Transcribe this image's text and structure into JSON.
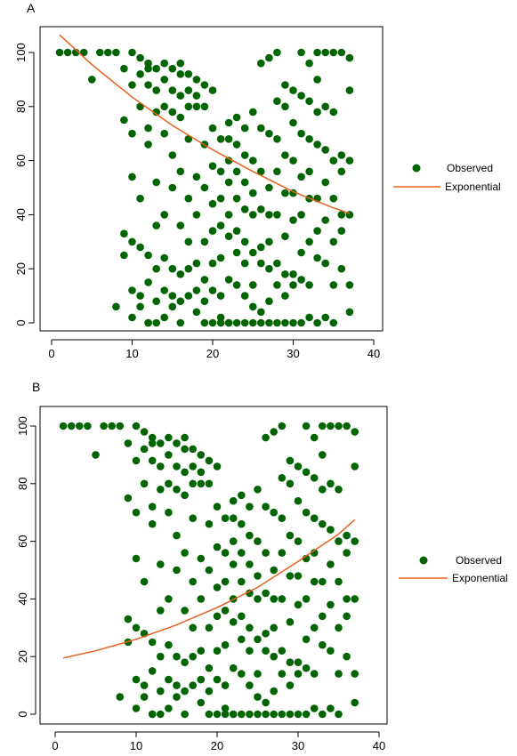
{
  "chart_data": [
    {
      "panel_label": "A",
      "type": "scatter",
      "title": "",
      "xlabel": "",
      "ylabel": "",
      "xlim": [
        0,
        40
      ],
      "ylim": [
        0,
        100
      ],
      "xticks": [
        0,
        10,
        20,
        30,
        40
      ],
      "yticks": [
        0,
        20,
        40,
        60,
        80,
        100
      ],
      "grid": false,
      "legend": {
        "placement": "right",
        "entries": [
          {
            "label": "Observed",
            "kind": "point",
            "color": "#006400"
          },
          {
            "label": "Exponential",
            "kind": "line",
            "color": "#E8601C"
          }
        ]
      },
      "series": [
        {
          "name": "Observed",
          "kind": "points",
          "color": "#006400",
          "x": [
            1,
            2,
            3,
            4,
            5,
            6,
            7,
            8,
            8,
            9,
            9,
            9,
            9,
            10,
            10,
            10,
            10,
            10,
            10,
            10,
            11,
            11,
            11,
            11,
            11,
            11,
            11,
            12,
            12,
            12,
            12,
            12,
            12,
            12,
            12,
            12,
            13,
            13,
            13,
            13,
            13,
            13,
            13,
            13,
            14,
            14,
            14,
            14,
            14,
            14,
            14,
            14,
            15,
            15,
            15,
            15,
            15,
            15,
            15,
            15,
            16,
            16,
            16,
            16,
            16,
            16,
            16,
            16,
            16,
            17,
            17,
            17,
            17,
            17,
            17,
            17,
            17,
            18,
            18,
            18,
            18,
            18,
            18,
            18,
            18,
            19,
            19,
            19,
            19,
            19,
            19,
            19,
            19,
            20,
            20,
            20,
            20,
            20,
            20,
            20,
            20,
            21,
            21,
            21,
            21,
            21,
            21,
            21,
            21,
            22,
            22,
            22,
            22,
            22,
            22,
            22,
            22,
            22,
            23,
            23,
            23,
            23,
            23,
            23,
            23,
            23,
            24,
            24,
            24,
            24,
            24,
            24,
            24,
            24,
            25,
            25,
            25,
            25,
            25,
            25,
            25,
            25,
            26,
            26,
            26,
            26,
            26,
            26,
            26,
            26,
            27,
            27,
            27,
            27,
            27,
            27,
            27,
            27,
            28,
            28,
            28,
            28,
            28,
            28,
            28,
            28,
            29,
            29,
            29,
            29,
            29,
            29,
            29,
            29,
            30,
            30,
            30,
            30,
            30,
            30,
            30,
            30,
            31,
            31,
            31,
            31,
            31,
            31,
            31,
            31,
            32,
            32,
            32,
            32,
            32,
            32,
            32,
            32,
            33,
            33,
            33,
            33,
            33,
            33,
            33,
            33,
            34,
            34,
            34,
            34,
            34,
            34,
            34,
            35,
            35,
            35,
            35,
            35,
            35,
            35,
            36,
            36,
            36,
            36,
            36,
            36,
            37,
            37,
            37,
            37,
            37,
            37
          ],
          "y": [
            100,
            100,
            100,
            100,
            90,
            100,
            100,
            100,
            6,
            94,
            75,
            33,
            25,
            100,
            88,
            70,
            54,
            30,
            12,
            2,
            92,
            98,
            80,
            46,
            28,
            10,
            6,
            96,
            94,
            88,
            72,
            66,
            25,
            15,
            0,
            0,
            94,
            86,
            78,
            52,
            36,
            20,
            8,
            0,
            96,
            90,
            80,
            70,
            40,
            24,
            12,
            2,
            94,
            86,
            78,
            62,
            50,
            20,
            10,
            6,
            96,
            92,
            84,
            76,
            56,
            36,
            18,
            8,
            0,
            92,
            86,
            80,
            68,
            46,
            30,
            20,
            10,
            90,
            84,
            80,
            54,
            40,
            22,
            12,
            4,
            88,
            80,
            66,
            50,
            30,
            16,
            8,
            0,
            86,
            72,
            58,
            44,
            34,
            22,
            12,
            0,
            68,
            56,
            46,
            36,
            24,
            10,
            2,
            0,
            74,
            68,
            60,
            52,
            40,
            32,
            16,
            0,
            0,
            76,
            66,
            56,
            46,
            34,
            26,
            14,
            0,
            72,
            62,
            52,
            42,
            30,
            22,
            10,
            0,
            78,
            60,
            48,
            40,
            26,
            14,
            6,
            0,
            96,
            72,
            56,
            42,
            28,
            22,
            4,
            0,
            98,
            70,
            50,
            40,
            30,
            20,
            8,
            0,
            100,
            82,
            68,
            56,
            40,
            22,
            14,
            0,
            88,
            80,
            62,
            48,
            32,
            18,
            10,
            0,
            86,
            74,
            60,
            48,
            38,
            18,
            14,
            0,
            100,
            84,
            70,
            54,
            40,
            26,
            16,
            0,
            96,
            82,
            68,
            56,
            46,
            30,
            14,
            2,
            100,
            90,
            78,
            66,
            46,
            34,
            24,
            0,
            100,
            80,
            64,
            52,
            38,
            22,
            2,
            100,
            78,
            60,
            46,
            30,
            14,
            0,
            100,
            62,
            56,
            40,
            34,
            20,
            98,
            86,
            60,
            40,
            14,
            4
          ]
        },
        {
          "name": "Exponential",
          "kind": "line",
          "color": "#E8601C",
          "x": [
            1,
            5,
            10,
            15,
            20,
            25,
            30,
            35,
            37
          ],
          "y": [
            106.5,
            95.5,
            83.5,
            73,
            64,
            56,
            48.5,
            42.5,
            40.5
          ]
        }
      ]
    },
    {
      "panel_label": "B",
      "type": "scatter",
      "title": "",
      "xlabel": "",
      "ylabel": "",
      "xlim": [
        0,
        40
      ],
      "ylim": [
        0,
        100
      ],
      "xticks": [
        0,
        10,
        20,
        30,
        40
      ],
      "yticks": [
        0,
        20,
        40,
        60,
        80,
        100
      ],
      "grid": false,
      "legend": {
        "placement": "right",
        "entries": [
          {
            "label": "Observed",
            "kind": "point",
            "color": "#006400"
          },
          {
            "label": "Exponential",
            "kind": "line",
            "color": "#E8601C"
          }
        ]
      },
      "series": [
        {
          "name": "Observed",
          "kind": "points",
          "color": "#006400",
          "x": [
            1,
            2,
            3,
            4,
            5,
            6,
            7,
            8,
            8,
            9,
            9,
            9,
            9,
            10,
            10,
            10,
            10,
            10,
            10,
            10,
            11,
            11,
            11,
            11,
            11,
            11,
            11,
            12,
            12,
            12,
            12,
            12,
            12,
            12,
            12,
            12,
            13,
            13,
            13,
            13,
            13,
            13,
            13,
            13,
            14,
            14,
            14,
            14,
            14,
            14,
            14,
            14,
            15,
            15,
            15,
            15,
            15,
            15,
            15,
            15,
            16,
            16,
            16,
            16,
            16,
            16,
            16,
            16,
            16,
            17,
            17,
            17,
            17,
            17,
            17,
            17,
            17,
            18,
            18,
            18,
            18,
            18,
            18,
            18,
            18,
            19,
            19,
            19,
            19,
            19,
            19,
            19,
            19,
            20,
            20,
            20,
            20,
            20,
            20,
            20,
            20,
            21,
            21,
            21,
            21,
            21,
            21,
            21,
            21,
            22,
            22,
            22,
            22,
            22,
            22,
            22,
            22,
            22,
            23,
            23,
            23,
            23,
            23,
            23,
            23,
            23,
            24,
            24,
            24,
            24,
            24,
            24,
            24,
            24,
            25,
            25,
            25,
            25,
            25,
            25,
            25,
            25,
            26,
            26,
            26,
            26,
            26,
            26,
            26,
            26,
            27,
            27,
            27,
            27,
            27,
            27,
            27,
            27,
            28,
            28,
            28,
            28,
            28,
            28,
            28,
            28,
            29,
            29,
            29,
            29,
            29,
            29,
            29,
            29,
            30,
            30,
            30,
            30,
            30,
            30,
            30,
            30,
            31,
            31,
            31,
            31,
            31,
            31,
            31,
            31,
            32,
            32,
            32,
            32,
            32,
            32,
            32,
            32,
            33,
            33,
            33,
            33,
            33,
            33,
            33,
            33,
            34,
            34,
            34,
            34,
            34,
            34,
            34,
            35,
            35,
            35,
            35,
            35,
            35,
            35,
            36,
            36,
            36,
            36,
            36,
            36,
            37,
            37,
            37,
            37,
            37,
            37
          ],
          "y": [
            100,
            100,
            100,
            100,
            90,
            100,
            100,
            100,
            6,
            94,
            75,
            33,
            25,
            100,
            88,
            70,
            54,
            30,
            12,
            2,
            92,
            98,
            80,
            46,
            28,
            10,
            6,
            96,
            94,
            88,
            72,
            66,
            25,
            15,
            0,
            0,
            94,
            86,
            78,
            52,
            36,
            20,
            8,
            0,
            96,
            90,
            80,
            70,
            40,
            24,
            12,
            2,
            94,
            86,
            78,
            62,
            50,
            20,
            10,
            6,
            96,
            92,
            84,
            76,
            56,
            36,
            18,
            8,
            0,
            92,
            86,
            80,
            68,
            46,
            30,
            20,
            10,
            90,
            84,
            80,
            54,
            40,
            22,
            12,
            4,
            88,
            80,
            66,
            50,
            30,
            16,
            8,
            0,
            86,
            72,
            58,
            44,
            34,
            22,
            12,
            0,
            68,
            56,
            46,
            36,
            24,
            10,
            2,
            0,
            74,
            68,
            60,
            52,
            40,
            32,
            16,
            0,
            0,
            76,
            66,
            56,
            46,
            34,
            26,
            14,
            0,
            72,
            62,
            52,
            42,
            30,
            22,
            10,
            0,
            78,
            60,
            48,
            40,
            26,
            14,
            6,
            0,
            96,
            72,
            56,
            42,
            28,
            22,
            4,
            0,
            98,
            70,
            50,
            40,
            30,
            20,
            8,
            0,
            100,
            82,
            68,
            56,
            40,
            22,
            14,
            0,
            88,
            80,
            62,
            48,
            32,
            18,
            10,
            0,
            86,
            74,
            60,
            48,
            38,
            18,
            14,
            0,
            100,
            84,
            70,
            54,
            40,
            26,
            16,
            0,
            96,
            82,
            68,
            56,
            46,
            30,
            14,
            2,
            100,
            90,
            78,
            66,
            46,
            34,
            24,
            0,
            100,
            80,
            64,
            52,
            38,
            22,
            2,
            100,
            78,
            60,
            46,
            30,
            14,
            0,
            100,
            62,
            56,
            40,
            34,
            20,
            98,
            86,
            60,
            40,
            14,
            4
          ]
        },
        {
          "name": "Exponential",
          "kind": "line",
          "color": "#E8601C",
          "x": [
            1,
            5,
            10,
            15,
            20,
            25,
            30,
            35,
            37
          ],
          "y": [
            19.5,
            22,
            26,
            31,
            37,
            44,
            53,
            62.5,
            67.5
          ]
        }
      ]
    }
  ]
}
